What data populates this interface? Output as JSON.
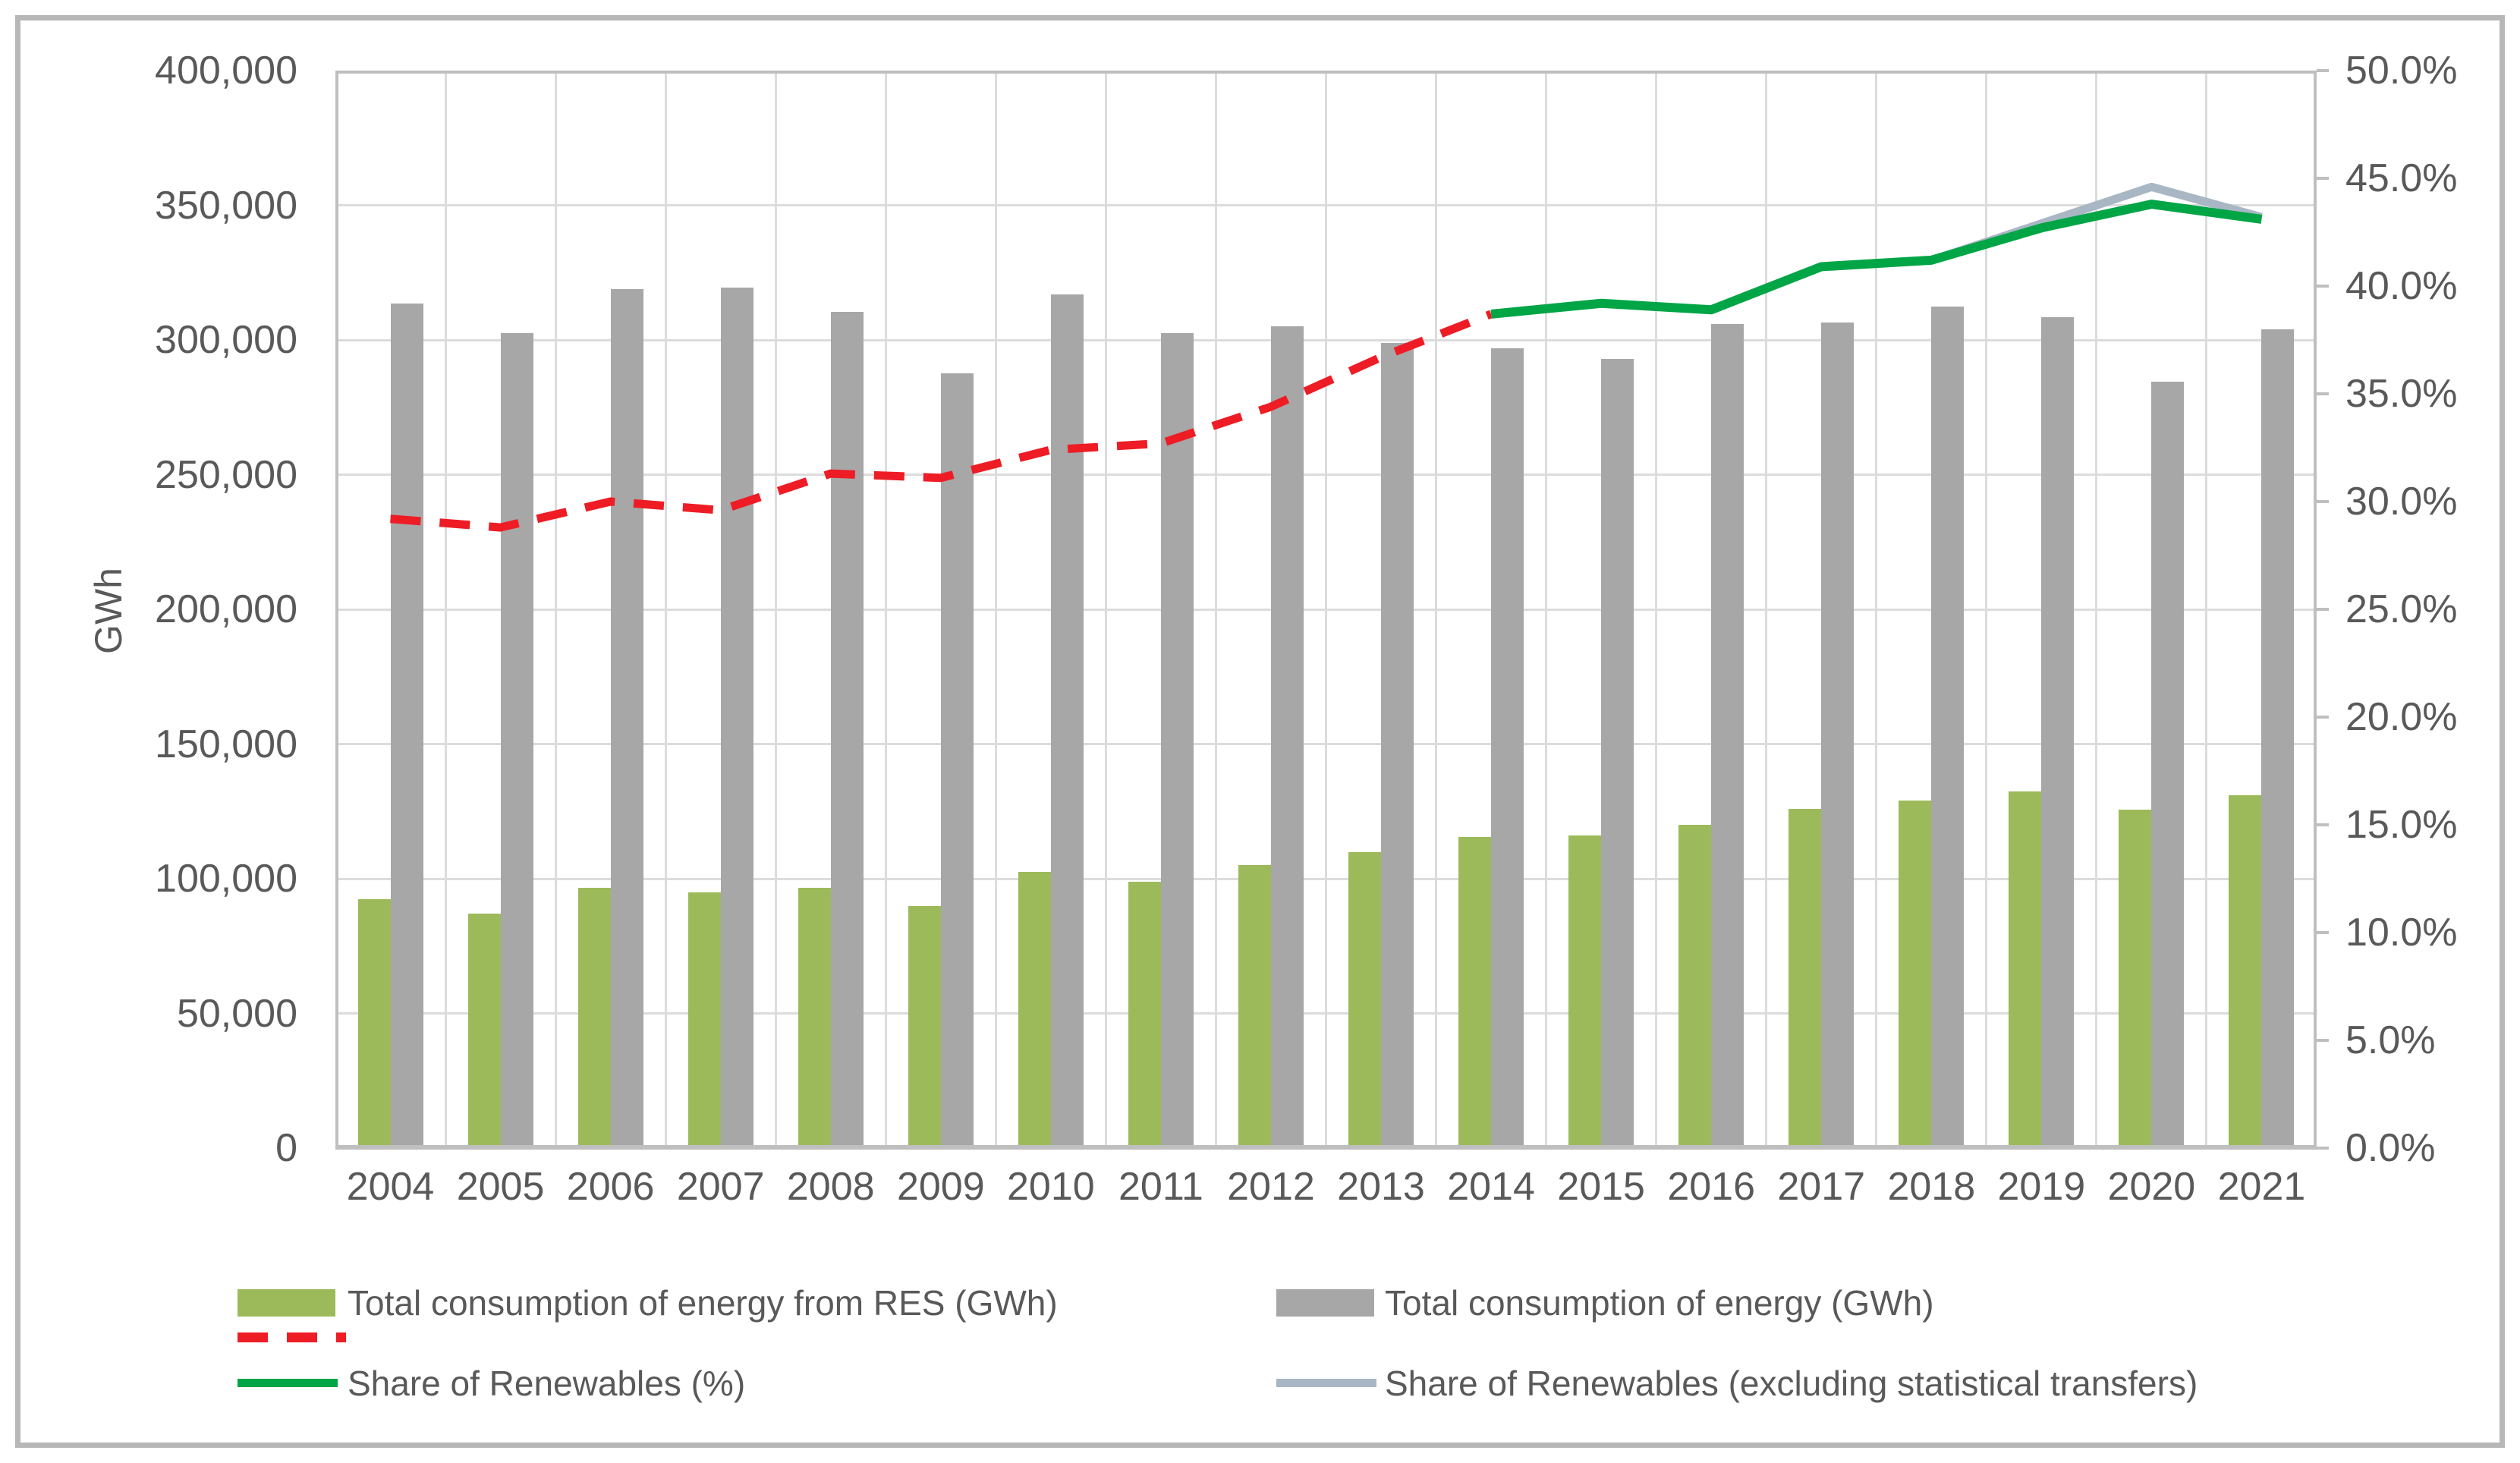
{
  "colors": {
    "text": "#595959",
    "gridline": "#DCDCDC",
    "axis_border": "#BFBFBF",
    "frame": "#B7B7B7",
    "background": "#FFFFFF",
    "res_bar": "#9CBA59",
    "total_bar": "#A7A7A7",
    "red_dashed_line": "#EE1C25",
    "share_line": "#00A546",
    "share_excl_transfers_line": "#A9B7C5"
  },
  "chart_data": {
    "type": "bar",
    "subtype": "combo-clustered-bars-with-dual-axis-lines",
    "title": "",
    "categories": [
      "2004",
      "2005",
      "2006",
      "2007",
      "2008",
      "2009",
      "2010",
      "2011",
      "2012",
      "2013",
      "2014",
      "2015",
      "2016",
      "2017",
      "2018",
      "2019",
      "2020",
      "2021"
    ],
    "series": [
      {
        "id": "res",
        "name": "Total consumption of energy from RES (GWh)",
        "type": "bar",
        "axis": "left",
        "color": "#9CBA59",
        "values": [
          92500,
          87000,
          96500,
          95000,
          96500,
          90000,
          102500,
          99000,
          105000,
          110000,
          115500,
          116000,
          120000,
          126000,
          129000,
          132500,
          125500,
          131000
        ]
      },
      {
        "id": "total",
        "name": "Total consumption of energy (GWh)",
        "type": "bar",
        "axis": "left",
        "color": "#A7A7A7",
        "values": [
          313500,
          302500,
          319000,
          319500,
          310500,
          287500,
          317000,
          302500,
          305000,
          299000,
          297000,
          293000,
          306000,
          306500,
          312500,
          308500,
          284500,
          304000
        ]
      },
      {
        "id": "share-history-dashed",
        "name": "",
        "type": "line",
        "dash": "dashed",
        "axis": "right",
        "color": "#EE1C25",
        "x": [
          "2004",
          "2005",
          "2006",
          "2007",
          "2008",
          "2009",
          "2010",
          "2011",
          "2012",
          "2013",
          "2014"
        ],
        "values": [
          29.2,
          28.8,
          30.0,
          29.6,
          31.3,
          31.1,
          32.4,
          32.7,
          34.4,
          36.7,
          38.7
        ]
      },
      {
        "id": "share-excl-transfers",
        "name": "Share of Renewables (excluding statistical transfers)",
        "type": "line",
        "axis": "right",
        "color": "#A9B7C5",
        "x": [
          "2014",
          "2015",
          "2016",
          "2017",
          "2018",
          "2019",
          "2020",
          "2021"
        ],
        "values": [
          38.7,
          39.2,
          38.9,
          40.9,
          41.2,
          42.9,
          44.6,
          43.2
        ]
      },
      {
        "id": "share",
        "name": "Share of Renewables (%)",
        "type": "line",
        "axis": "right",
        "color": "#00A546",
        "x": [
          "2014",
          "2015",
          "2016",
          "2017",
          "2018",
          "2019",
          "2020",
          "2021"
        ],
        "values": [
          38.7,
          39.2,
          38.9,
          40.9,
          41.2,
          42.7,
          43.8,
          43.1
        ]
      }
    ],
    "left_axis": {
      "title": "GWh",
      "min": 0,
      "max": 400000,
      "ticks": [
        {
          "label": "400,000",
          "value": 400000
        },
        {
          "label": "350,000",
          "value": 350000
        },
        {
          "label": "300,000",
          "value": 300000
        },
        {
          "label": "250,000",
          "value": 250000
        },
        {
          "label": "200,000",
          "value": 200000
        },
        {
          "label": "150,000",
          "value": 150000
        },
        {
          "label": "100,000",
          "value": 100000
        },
        {
          "label": "50,000",
          "value": 50000
        },
        {
          "label": "0",
          "value": 0
        }
      ]
    },
    "right_axis": {
      "min": 0,
      "max": 50,
      "ticks": [
        {
          "label": "50.0%",
          "value": 50
        },
        {
          "label": "45.0%",
          "value": 45
        },
        {
          "label": "40.0%",
          "value": 40
        },
        {
          "label": "35.0%",
          "value": 35
        },
        {
          "label": "30.0%",
          "value": 30
        },
        {
          "label": "25.0%",
          "value": 25
        },
        {
          "label": "20.0%",
          "value": 20
        },
        {
          "label": "15.0%",
          "value": 15
        },
        {
          "label": "10.0%",
          "value": 10
        },
        {
          "label": "5.0%",
          "value": 5
        },
        {
          "label": "0.0%",
          "value": 0
        }
      ]
    },
    "grid": true,
    "legend_position": "bottom"
  },
  "legend": {
    "columns": [
      {
        "rows": [
          {
            "swatch": "bar",
            "color": "#9CBA59",
            "label": "Total consumption of energy from RES (GWh)"
          },
          {
            "swatch": "dashed-line",
            "color": "#EE1C25",
            "label": ""
          },
          {
            "swatch": "line",
            "color": "#00A546",
            "label": "Share of Renewables (%)"
          }
        ]
      },
      {
        "rows": [
          {
            "swatch": "bar",
            "color": "#A7A7A7",
            "label": "Total consumption of energy (GWh)"
          },
          {
            "swatch": "none",
            "color": "",
            "label": ""
          },
          {
            "swatch": "line",
            "color": "#A9B7C5",
            "label": "Share of Renewables (excluding statistical transfers)"
          }
        ]
      }
    ]
  }
}
